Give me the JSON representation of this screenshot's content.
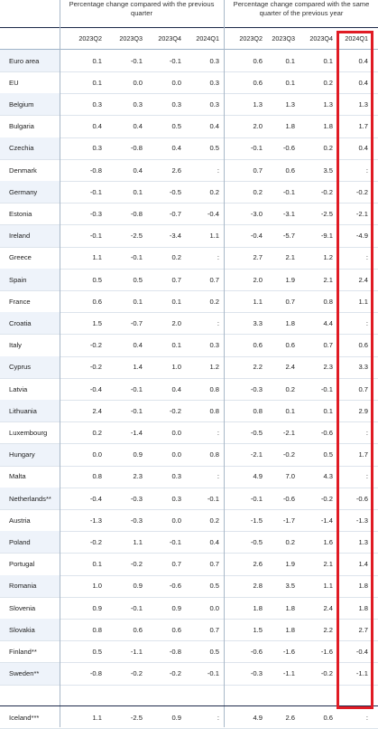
{
  "header": {
    "group1": "Percentage change compared with the previous quarter",
    "group2": "Percentage change compared with the same quarter of the previous year",
    "columns": [
      "2023Q2",
      "2023Q3",
      "2023Q4",
      "2024Q1",
      "2023Q2",
      "2023Q3",
      "2023Q4",
      "2024Q1"
    ]
  },
  "rows": [
    {
      "name": "Euro area",
      "values": [
        "0.1",
        "-0.1",
        "-0.1",
        "0.3",
        "0.6",
        "0.1",
        "0.1",
        "0.4"
      ]
    },
    {
      "name": "EU",
      "values": [
        "0.1",
        "0.0",
        "0.0",
        "0.3",
        "0.6",
        "0.1",
        "0.2",
        "0.4"
      ]
    },
    {
      "name": "Belgium",
      "values": [
        "0.3",
        "0.3",
        "0.3",
        "0.3",
        "1.3",
        "1.3",
        "1.3",
        "1.3"
      ]
    },
    {
      "name": "Bulgaria",
      "values": [
        "0.4",
        "0.4",
        "0.5",
        "0.4",
        "2.0",
        "1.8",
        "1.8",
        "1.7"
      ]
    },
    {
      "name": "Czechia",
      "values": [
        "0.3",
        "-0.8",
        "0.4",
        "0.5",
        "-0.1",
        "-0.6",
        "0.2",
        "0.4"
      ]
    },
    {
      "name": "Denmark",
      "values": [
        "-0.8",
        "0.4",
        "2.6",
        ":",
        "0.7",
        "0.6",
        "3.5",
        ":"
      ]
    },
    {
      "name": "Germany",
      "values": [
        "-0.1",
        "0.1",
        "-0.5",
        "0.2",
        "0.2",
        "-0.1",
        "-0.2",
        "-0.2"
      ]
    },
    {
      "name": "Estonia",
      "values": [
        "-0.3",
        "-0.8",
        "-0.7",
        "-0.4",
        "-3.0",
        "-3.1",
        "-2.5",
        "-2.1"
      ]
    },
    {
      "name": "Ireland",
      "values": [
        "-0.1",
        "-2.5",
        "-3.4",
        "1.1",
        "-0.4",
        "-5.7",
        "-9.1",
        "-4.9"
      ]
    },
    {
      "name": "Greece",
      "values": [
        "1.1",
        "-0.1",
        "0.2",
        ":",
        "2.7",
        "2.1",
        "1.2",
        ":"
      ]
    },
    {
      "name": "Spain",
      "values": [
        "0.5",
        "0.5",
        "0.7",
        "0.7",
        "2.0",
        "1.9",
        "2.1",
        "2.4"
      ]
    },
    {
      "name": "France",
      "values": [
        "0.6",
        "0.1",
        "0.1",
        "0.2",
        "1.1",
        "0.7",
        "0.8",
        "1.1"
      ]
    },
    {
      "name": "Croatia",
      "values": [
        "1.5",
        "-0.7",
        "2.0",
        ":",
        "3.3",
        "1.8",
        "4.4",
        ":"
      ]
    },
    {
      "name": "Italy",
      "values": [
        "-0.2",
        "0.4",
        "0.1",
        "0.3",
        "0.6",
        "0.6",
        "0.7",
        "0.6"
      ]
    },
    {
      "name": "Cyprus",
      "values": [
        "-0.2",
        "1.4",
        "1.0",
        "1.2",
        "2.2",
        "2.4",
        "2.3",
        "3.3"
      ]
    },
    {
      "name": "Latvia",
      "values": [
        "-0.4",
        "-0.1",
        "0.4",
        "0.8",
        "-0.3",
        "0.2",
        "-0.1",
        "0.7"
      ]
    },
    {
      "name": "Lithuania",
      "values": [
        "2.4",
        "-0.1",
        "-0.2",
        "0.8",
        "0.8",
        "0.1",
        "0.1",
        "2.9"
      ]
    },
    {
      "name": "Luxembourg",
      "values": [
        "0.2",
        "-1.4",
        "0.0",
        ":",
        "-0.5",
        "-2.1",
        "-0.6",
        ":"
      ]
    },
    {
      "name": "Hungary",
      "values": [
        "0.0",
        "0.9",
        "0.0",
        "0.8",
        "-2.1",
        "-0.2",
        "0.5",
        "1.7"
      ]
    },
    {
      "name": "Malta",
      "values": [
        "0.8",
        "2.3",
        "0.3",
        ":",
        "4.9",
        "7.0",
        "4.3",
        ":"
      ]
    },
    {
      "name": "Netherlands**",
      "values": [
        "-0.4",
        "-0.3",
        "0.3",
        "-0.1",
        "-0.1",
        "-0.6",
        "-0.2",
        "-0.6"
      ]
    },
    {
      "name": "Austria",
      "values": [
        "-1.3",
        "-0.3",
        "0.0",
        "0.2",
        "-1.5",
        "-1.7",
        "-1.4",
        "-1.3"
      ]
    },
    {
      "name": "Poland",
      "values": [
        "-0.2",
        "1.1",
        "-0.1",
        "0.4",
        "-0.5",
        "0.2",
        "1.6",
        "1.3"
      ]
    },
    {
      "name": "Portugal",
      "values": [
        "0.1",
        "-0.2",
        "0.7",
        "0.7",
        "2.6",
        "1.9",
        "2.1",
        "1.4"
      ]
    },
    {
      "name": "Romania",
      "values": [
        "1.0",
        "0.9",
        "-0.6",
        "0.5",
        "2.8",
        "3.5",
        "1.1",
        "1.8"
      ]
    },
    {
      "name": "Slovenia",
      "values": [
        "0.9",
        "-0.1",
        "0.9",
        "0.0",
        "1.8",
        "1.8",
        "2.4",
        "1.8"
      ]
    },
    {
      "name": "Slovakia",
      "values": [
        "0.8",
        "0.6",
        "0.6",
        "0.7",
        "1.5",
        "1.8",
        "2.2",
        "2.7"
      ]
    },
    {
      "name": "Finland**",
      "values": [
        "0.5",
        "-1.1",
        "-0.8",
        "0.5",
        "-0.6",
        "-1.6",
        "-1.6",
        "-0.4"
      ]
    },
    {
      "name": "Sweden**",
      "values": [
        "-0.8",
        "-0.2",
        "-0.2",
        "-0.1",
        "-0.3",
        "-1.1",
        "-0.2",
        "-1.1"
      ]
    }
  ],
  "footer_row": {
    "name": "Iceland***",
    "values": [
      "1.1",
      "-2.5",
      "0.9",
      ":",
      "4.9",
      "2.6",
      "0.6",
      ":"
    ]
  },
  "highlight_color": "#e01b24"
}
